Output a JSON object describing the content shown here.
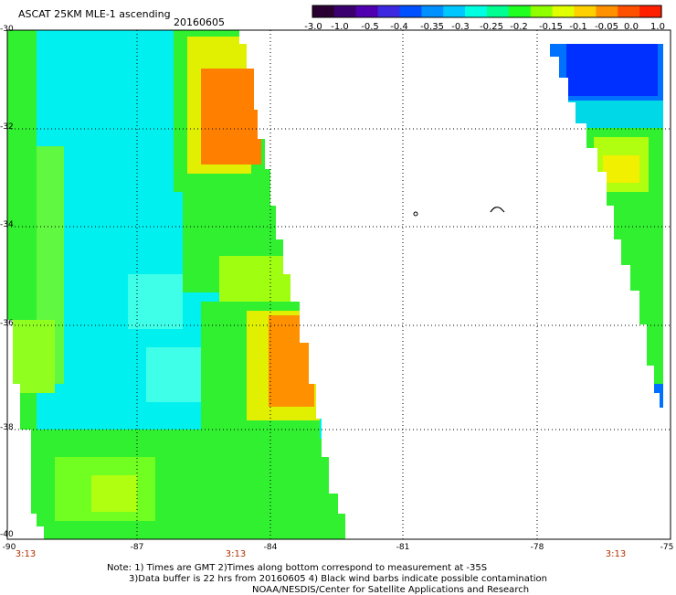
{
  "header": {
    "title": "ASCAT 25KM MLE-1 ascending",
    "date": "20160605"
  },
  "colorbar": {
    "tick_labels": [
      "-3.0",
      "-1.0",
      "-0.5",
      "-0.4",
      "-0.35",
      "-0.3",
      "-0.25",
      "-0.2",
      "-0.15",
      "-0.1",
      "-0.05",
      "0.0",
      "1.0"
    ],
    "colors": [
      "#2a0032",
      "#3a0070",
      "#5000b0",
      "#3c28e0",
      "#0050ff",
      "#0090ff",
      "#00c8ff",
      "#00ffe0",
      "#00ff90",
      "#20ff20",
      "#90ff00",
      "#e0ff00",
      "#ffd000",
      "#ff9000",
      "#ff5000",
      "#ff2000"
    ]
  },
  "map": {
    "lat_labels": [
      "-30",
      "-32",
      "-34",
      "-36",
      "-38",
      "-40"
    ],
    "lon_labels": [
      "-90",
      "-87",
      "-84",
      "-81",
      "-78",
      "-75"
    ],
    "swath_time_labels": [
      "3:13",
      "3:13",
      "3:13"
    ],
    "colors": {
      "cyan": "#00f0f0",
      "light_cyan": "#40ffe8",
      "green": "#30f030",
      "light_green": "#80ff20",
      "yellow": "#f0f000",
      "orange": "#ff8000",
      "blue": "#0030ff",
      "mid_blue": "#0070ff"
    }
  },
  "notes": {
    "line1": "Note: 1) Times are GMT 2)Times along bottom correspond to measurement at -35S",
    "line2": "3)Data buffer is 22 hrs from 20160605 4) Black wind barbs indicate possible contamination",
    "line3": "NOAA/NESDIS/Center for Satellite Applications and Research"
  }
}
